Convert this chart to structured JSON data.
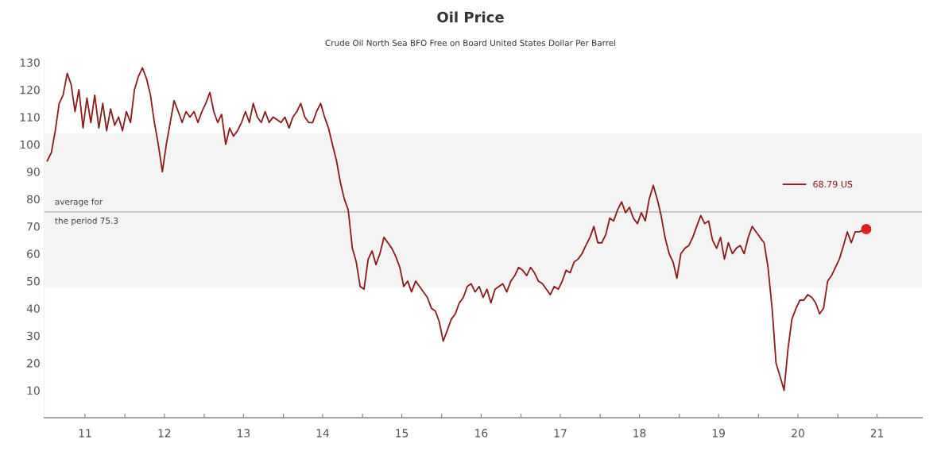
{
  "chart_data": {
    "type": "line",
    "title": "Oil Price",
    "subtitle": "Crude Oil North Sea BFO Free on Board United States Dollar Per Barrel",
    "xlim": [
      "2010-12-25",
      "2022-01-25"
    ],
    "ylim": [
      0,
      131
    ],
    "xticks": [
      {
        "value": "2011-07-01",
        "label": "11"
      },
      {
        "value": "2012-01-01",
        "label": null
      },
      {
        "value": "2012-07-01",
        "label": "12"
      },
      {
        "value": "2013-01-01",
        "label": null
      },
      {
        "value": "2013-07-01",
        "label": "13"
      },
      {
        "value": "2014-01-01",
        "label": null
      },
      {
        "value": "2014-07-01",
        "label": "14"
      },
      {
        "value": "2015-01-01",
        "label": null
      },
      {
        "value": "2015-07-01",
        "label": "15"
      },
      {
        "value": "2016-01-01",
        "label": null
      },
      {
        "value": "2016-07-01",
        "label": "16"
      },
      {
        "value": "2017-01-01",
        "label": null
      },
      {
        "value": "2017-07-01",
        "label": "17"
      },
      {
        "value": "2018-01-01",
        "label": null
      },
      {
        "value": "2018-07-01",
        "label": "18"
      },
      {
        "value": "2019-01-01",
        "label": null
      },
      {
        "value": "2019-07-01",
        "label": "19"
      },
      {
        "value": "2020-01-01",
        "label": null
      },
      {
        "value": "2020-07-01",
        "label": "20"
      },
      {
        "value": "2021-01-01",
        "label": null
      },
      {
        "value": "2021-07-01",
        "label": "21"
      }
    ],
    "yticks": [
      10,
      20,
      30,
      40,
      50,
      60,
      70,
      80,
      90,
      100,
      110,
      120,
      130
    ],
    "grid": false,
    "legend": "right",
    "ref_lines": [
      {
        "axis": "y",
        "value": 75.3,
        "label": "average for\nthe period 75.3",
        "color": "#b0b0b0"
      }
    ],
    "bands": [
      {
        "axis": "y",
        "from": 47.5,
        "to": 104,
        "color": "#f4f4f4"
      }
    ],
    "series": [
      {
        "name": "68.79 US",
        "color": "#8b1a1a",
        "x": [
          "2011-01-08",
          "2011-01-27",
          "2011-02-14",
          "2011-03-04",
          "2011-03-22",
          "2011-04-10",
          "2011-04-28",
          "2011-05-16",
          "2011-06-03",
          "2011-06-22",
          "2011-07-10",
          "2011-07-28",
          "2011-08-15",
          "2011-09-03",
          "2011-09-21",
          "2011-10-09",
          "2011-10-27",
          "2011-11-15",
          "2011-12-03",
          "2011-12-21",
          "2012-01-08",
          "2012-01-27",
          "2012-02-14",
          "2012-03-04",
          "2012-03-22",
          "2012-04-10",
          "2012-04-28",
          "2012-05-16",
          "2012-06-03",
          "2012-06-22",
          "2012-07-10",
          "2012-07-28",
          "2012-08-15",
          "2012-09-03",
          "2012-09-21",
          "2012-10-09",
          "2012-10-27",
          "2012-11-15",
          "2012-12-03",
          "2012-12-21",
          "2013-01-08",
          "2013-01-27",
          "2013-02-14",
          "2013-03-04",
          "2013-03-22",
          "2013-04-10",
          "2013-04-28",
          "2013-05-16",
          "2013-06-03",
          "2013-06-22",
          "2013-07-10",
          "2013-07-28",
          "2013-08-15",
          "2013-09-03",
          "2013-09-21",
          "2013-10-09",
          "2013-10-27",
          "2013-11-15",
          "2013-12-03",
          "2013-12-21",
          "2014-01-08",
          "2014-01-27",
          "2014-02-14",
          "2014-03-04",
          "2014-03-22",
          "2014-04-10",
          "2014-04-28",
          "2014-05-16",
          "2014-06-03",
          "2014-06-22",
          "2014-07-10",
          "2014-07-28",
          "2014-08-15",
          "2014-09-03",
          "2014-09-21",
          "2014-10-09",
          "2014-10-27",
          "2014-11-15",
          "2014-12-03",
          "2014-12-21",
          "2015-01-08",
          "2015-01-27",
          "2015-02-14",
          "2015-03-04",
          "2015-03-22",
          "2015-04-10",
          "2015-04-28",
          "2015-05-16",
          "2015-06-03",
          "2015-06-22",
          "2015-07-10",
          "2015-07-28",
          "2015-08-15",
          "2015-09-03",
          "2015-09-21",
          "2015-10-09",
          "2015-10-27",
          "2015-11-15",
          "2015-12-03",
          "2015-12-21",
          "2016-01-08",
          "2016-01-27",
          "2016-02-14",
          "2016-03-04",
          "2016-03-22",
          "2016-04-10",
          "2016-04-28",
          "2016-05-16",
          "2016-06-03",
          "2016-06-22",
          "2016-07-10",
          "2016-07-28",
          "2016-08-15",
          "2016-09-03",
          "2016-09-21",
          "2016-10-09",
          "2016-10-27",
          "2016-11-15",
          "2016-12-03",
          "2016-12-21",
          "2017-01-08",
          "2017-01-27",
          "2017-02-14",
          "2017-03-04",
          "2017-03-22",
          "2017-04-10",
          "2017-04-28",
          "2017-05-16",
          "2017-06-03",
          "2017-06-22",
          "2017-07-10",
          "2017-07-28",
          "2017-08-15",
          "2017-09-03",
          "2017-09-21",
          "2017-10-09",
          "2017-10-27",
          "2017-11-15",
          "2017-12-03",
          "2017-12-21",
          "2018-01-08",
          "2018-01-27",
          "2018-02-14",
          "2018-03-04",
          "2018-03-22",
          "2018-04-10",
          "2018-04-28",
          "2018-05-16",
          "2018-06-03",
          "2018-06-22",
          "2018-07-10",
          "2018-07-28",
          "2018-08-15",
          "2018-09-03",
          "2018-09-21",
          "2018-10-09",
          "2018-10-27",
          "2018-11-15",
          "2018-12-03",
          "2018-12-21",
          "2019-01-08",
          "2019-01-27",
          "2019-02-14",
          "2019-03-04",
          "2019-03-22",
          "2019-04-10",
          "2019-04-28",
          "2019-05-16",
          "2019-06-03",
          "2019-06-22",
          "2019-07-10",
          "2019-07-28",
          "2019-08-15",
          "2019-09-03",
          "2019-09-21",
          "2019-10-09",
          "2019-10-27",
          "2019-11-15",
          "2019-12-03",
          "2019-12-21",
          "2020-01-08",
          "2020-01-27",
          "2020-02-14",
          "2020-03-04",
          "2020-03-22",
          "2020-04-10",
          "2020-04-28",
          "2020-05-16",
          "2020-06-03",
          "2020-06-22",
          "2020-07-10",
          "2020-07-28",
          "2020-08-15",
          "2020-09-03",
          "2020-09-21",
          "2020-10-09",
          "2020-10-27",
          "2020-11-15",
          "2020-12-03",
          "2020-12-21",
          "2021-01-08",
          "2021-01-27",
          "2021-02-14",
          "2021-03-04",
          "2021-03-22",
          "2021-04-10",
          "2021-05-12"
        ],
        "values": [
          94,
          97,
          105,
          115,
          118,
          126,
          122,
          112,
          120,
          106,
          117,
          108,
          118,
          106,
          115,
          105,
          113,
          107,
          110,
          105,
          112,
          108,
          120,
          125,
          128,
          124,
          118,
          108,
          100,
          90,
          100,
          108,
          116,
          112,
          108,
          112,
          110,
          112,
          108,
          112,
          115,
          119,
          112,
          108,
          111,
          100,
          106,
          103,
          105,
          108,
          112,
          108,
          115,
          110,
          108,
          112,
          108,
          110,
          109,
          108,
          110,
          106,
          110,
          112,
          115,
          110,
          108,
          108,
          112,
          115,
          110,
          106,
          100,
          94,
          86,
          80,
          76,
          62,
          57,
          48,
          47,
          58,
          61,
          56,
          60,
          66,
          64,
          62,
          59,
          55,
          48,
          50,
          46,
          50,
          48,
          46,
          44,
          40,
          39,
          35,
          28,
          32,
          36,
          38,
          42,
          44,
          48,
          49,
          46,
          48,
          44,
          47,
          42,
          47,
          48,
          49,
          46,
          50,
          52,
          55,
          54,
          52,
          55,
          53,
          50,
          49,
          47,
          45,
          48,
          47,
          50,
          54,
          53,
          57,
          58,
          60,
          63,
          66,
          70,
          64,
          64,
          67,
          73,
          72,
          76,
          79,
          75,
          77,
          73,
          71,
          75,
          72,
          80,
          85,
          80,
          74,
          66,
          60,
          57,
          51,
          60,
          62,
          63,
          66,
          70,
          74,
          71,
          72,
          65,
          62,
          66,
          58,
          64,
          60,
          62,
          63,
          60,
          66,
          70,
          68,
          66,
          64,
          55,
          40,
          20,
          15,
          10,
          25,
          36,
          40,
          43,
          43,
          45,
          44,
          42,
          38,
          40,
          50,
          52,
          55,
          58,
          63,
          68,
          64,
          68,
          68,
          69
        ]
      },
      {
        "type": "scatter",
        "color": "#e02020",
        "marker": "circle",
        "x": [
          "2021-05-12"
        ],
        "values": [
          69
        ]
      }
    ]
  }
}
